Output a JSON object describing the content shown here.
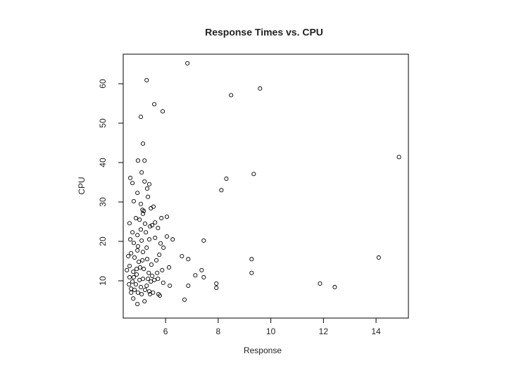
{
  "chart_data": {
    "type": "scatter",
    "title": "Response Times vs. CPU",
    "x_label": "Response",
    "y_label": "CPU",
    "xlim": [
      4.39,
      15.23
    ],
    "ylim": [
      0.54,
      67.5
    ],
    "xticks": [
      6,
      8,
      10,
      12,
      14
    ],
    "yticks": [
      10,
      20,
      30,
      40,
      50,
      60
    ],
    "color": "#000000",
    "x": [
      6.83,
      5.28,
      8.49,
      9.59,
      5.57,
      5.89,
      5.06,
      5.14,
      14.87,
      4.95,
      5.2,
      9.35,
      5.09,
      8.31,
      4.66,
      8.12,
      7.45,
      9.27,
      14.1,
      9.27,
      7.37,
      7.13,
      7.45,
      7.93,
      7.93,
      11.87,
      12.43,
      6.86,
      6.72,
      6.86,
      6.62,
      6.27,
      6.05,
      6.05,
      5.84,
      6.13,
      6.16,
      5.91,
      5.78,
      4.63,
      4.74,
      4.79,
      4.93,
      5.06,
      5.2,
      5.3,
      5.38,
      5.44,
      5.54,
      5.12,
      5.17,
      5.33,
      4.87,
      5.01,
      5.22,
      5.41,
      5.49,
      5.6,
      5.71,
      4.66,
      4.79,
      4.95,
      5.09,
      5.25,
      5.38,
      5.6,
      5.81,
      5.92,
      4.69,
      4.82,
      4.98,
      5.14,
      5.3,
      5.46,
      5.65,
      5.76,
      4.63,
      4.77,
      4.9,
      5.03,
      5.17,
      5.36,
      5.49,
      5.68,
      5.87,
      4.63,
      4.74,
      4.87,
      5.01,
      5.14,
      5.28,
      5.44,
      5.57,
      4.69,
      4.82,
      4.95,
      5.09,
      5.22,
      5.38,
      5.52,
      5.73,
      4.77,
      4.93,
      5.2,
      5.41,
      4.61,
      4.53,
      4.58,
      4.74,
      4.93,
      5.06,
      5.14,
      4.93,
      5.28,
      4.79,
      5.33,
      5.06,
      4.69,
      4.9,
      5.12,
      5.71
    ],
    "values": [
      65.2,
      60.9,
      57.1,
      58.8,
      54.8,
      53.0,
      51.6,
      44.8,
      41.4,
      40.5,
      40.5,
      37.1,
      37.5,
      35.9,
      36.1,
      33.0,
      20.2,
      15.5,
      15.9,
      12.0,
      12.7,
      11.4,
      10.9,
      9.3,
      8.2,
      9.3,
      8.4,
      8.75,
      5.2,
      15.5,
      16.25,
      20.5,
      21.25,
      26.25,
      25.9,
      13.4,
      8.75,
      9.5,
      6.25,
      24.6,
      34.8,
      30.2,
      32.3,
      29.5,
      35.2,
      33.4,
      34.5,
      28.4,
      28.8,
      28.0,
      27.7,
      31.3,
      25.9,
      25.5,
      24.5,
      23.8,
      24.1,
      24.8,
      23.4,
      20.5,
      19.6,
      18.75,
      20.2,
      22.3,
      20.5,
      20.9,
      19.5,
      18.4,
      17.0,
      15.9,
      14.8,
      17.3,
      15.5,
      14.1,
      15.2,
      16.6,
      13.75,
      12.3,
      11.6,
      13.4,
      13.0,
      12.0,
      11.25,
      12.0,
      12.7,
      10.9,
      9.8,
      9.1,
      10.2,
      10.5,
      8.75,
      9.8,
      10.2,
      8.0,
      7.7,
      7.0,
      6.6,
      7.7,
      7.3,
      7.0,
      6.6,
      5.5,
      4.1,
      4.8,
      6.6,
      9.1,
      12.7,
      16.25,
      22.3,
      21.6,
      23.0,
      27.0,
      17.7,
      18.4,
      10.9,
      10.5,
      8.4,
      7.0,
      13.0,
      15.2,
      10.5
    ]
  }
}
